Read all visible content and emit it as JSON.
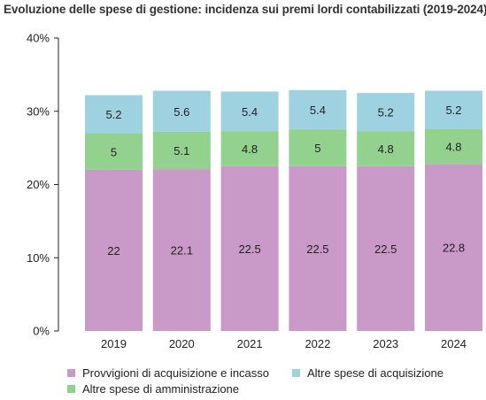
{
  "colors": {
    "provvigioni": "#c999c7",
    "amministrazione": "#93d18f",
    "acquisizione": "#9ed2e0",
    "axis": "#222222"
  },
  "chart_data": {
    "type": "bar",
    "stacked": true,
    "title": "Evoluzione delle spese di gestione: incidenza sui premi lordi contabilizzati (2019-2024)",
    "xlabel": "",
    "ylabel": "",
    "ylim": [
      0,
      40
    ],
    "y_ticks": [
      "0%",
      "10%",
      "20%",
      "30%",
      "40%"
    ],
    "y_tick_values": [
      0,
      10,
      20,
      30,
      40
    ],
    "grid": false,
    "legend_position": "bottom",
    "categories": [
      "2019",
      "2020",
      "2021",
      "2022",
      "2023",
      "2024"
    ],
    "series": [
      {
        "name": "Provvigioni di acquisizione e incasso",
        "color_key": "provvigioni",
        "values": [
          22,
          22.1,
          22.5,
          22.5,
          22.5,
          22.8
        ],
        "labels": [
          "22",
          "22.1",
          "22.5",
          "22.5",
          "22.5",
          "22.8"
        ]
      },
      {
        "name": "Altre spese di amministrazione",
        "color_key": "amministrazione",
        "values": [
          5,
          5.1,
          4.8,
          5,
          4.8,
          4.8
        ],
        "labels": [
          "5",
          "5.1",
          "4.8",
          "5",
          "4.8",
          "4.8"
        ]
      },
      {
        "name": "Altre spese di acquisizione",
        "color_key": "acquisizione",
        "values": [
          5.2,
          5.6,
          5.4,
          5.4,
          5.2,
          5.2
        ],
        "labels": [
          "5.2",
          "5.6",
          "5.4",
          "5.4",
          "5.2",
          "5.2"
        ]
      }
    ]
  }
}
